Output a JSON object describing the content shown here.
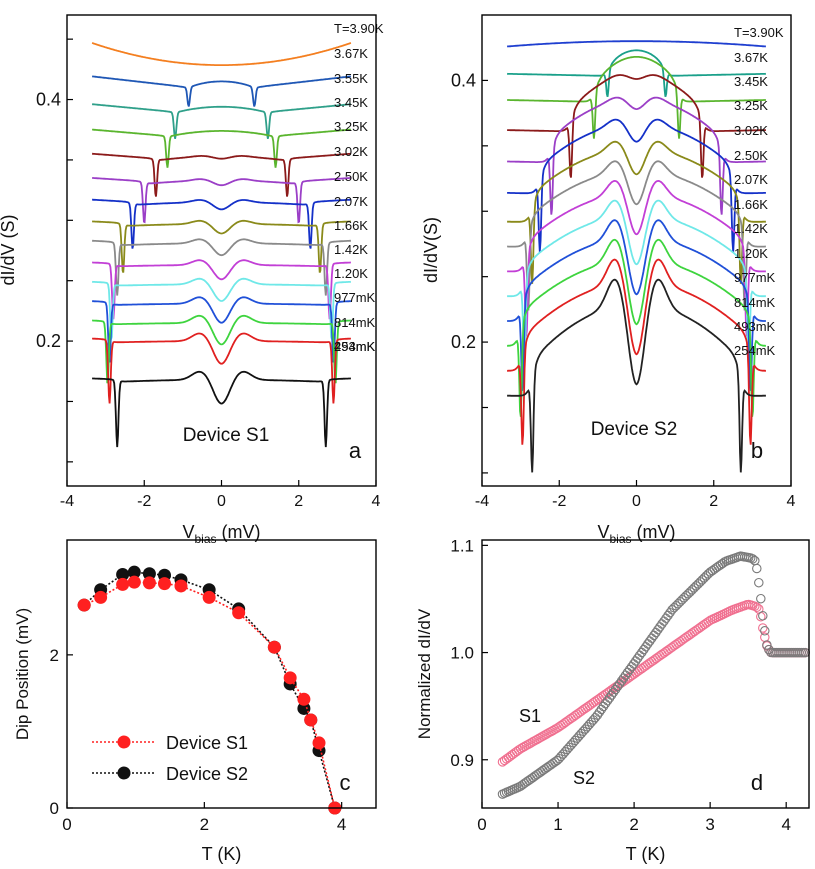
{
  "chart_data": [
    {
      "type": "line",
      "panel": "a",
      "device_label": "Device S1",
      "xlabel": "V",
      "xlabel_sub": "bias",
      "xlabel_unit": " (mV)",
      "ylabel": "dI/dV (S)",
      "xlim": [
        -4,
        4
      ],
      "ylim": [
        0.08,
        0.47
      ],
      "xticks": [
        "-4",
        "-2",
        "0",
        "2",
        "4"
      ],
      "yticks": [
        "0.2",
        "0.4"
      ],
      "series": [
        {
          "name": "T=3.90K",
          "color": "#f47f20",
          "offset": 0.4285,
          "dip": 0,
          "gap": 0,
          "dome": 0,
          "zb": 0,
          "bg": 0.018
        },
        {
          "name": "3.67K",
          "color": "#1f57b5",
          "offset": 0.407,
          "dip": 0.85,
          "gap": 0.016,
          "dome": 0.008,
          "zb": 0,
          "bg": 0.012
        },
        {
          "name": "3.55K",
          "color": "#2fa08a",
          "offset": 0.386,
          "dip": 1.2,
          "gap": 0.022,
          "dome": 0.008,
          "zb": 0,
          "bg": 0.01
        },
        {
          "name": "3.45K",
          "color": "#5ab52e",
          "offset": 0.366,
          "dip": 1.4,
          "gap": 0.026,
          "dome": 0.008,
          "zb": 0,
          "bg": 0.009
        },
        {
          "name": "3.25K",
          "color": "#8b1a1a",
          "offset": 0.347,
          "dip": 1.7,
          "gap": 0.031,
          "dome": 0.006,
          "zb": 0.002,
          "bg": 0.008
        },
        {
          "name": "3.02K",
          "color": "#9b3fc7",
          "offset": 0.328,
          "dip": 2.0,
          "gap": 0.034,
          "dome": 0.005,
          "zb": 0.004,
          "bg": 0.007
        },
        {
          "name": "2.50K",
          "color": "#1430c8",
          "offset": 0.311,
          "dip": 2.3,
          "gap": 0.038,
          "dome": 0.004,
          "zb": 0.006,
          "bg": 0.006
        },
        {
          "name": "2.07K",
          "color": "#8a8a1a",
          "offset": 0.294,
          "dip": 2.55,
          "gap": 0.041,
          "dome": 0.003,
          "zb": 0.008,
          "bg": 0.005
        },
        {
          "name": "1.66K",
          "color": "#8a8a8a",
          "offset": 0.278,
          "dip": 2.7,
          "gap": 0.043,
          "dome": 0.003,
          "zb": 0.01,
          "bg": 0.005
        },
        {
          "name": "1.42K",
          "color": "#c23fd6",
          "offset": 0.261,
          "dip": 2.8,
          "gap": 0.045,
          "dome": 0.002,
          "zb": 0.012,
          "bg": 0.004
        },
        {
          "name": "1.20K",
          "color": "#6fe8e8",
          "offset": 0.245,
          "dip": 2.85,
          "gap": 0.047,
          "dome": 0.002,
          "zb": 0.014,
          "bg": 0.004
        },
        {
          "name": "977mK",
          "color": "#2050d8",
          "offset": 0.229,
          "dip": 2.9,
          "gap": 0.049,
          "dome": 0.002,
          "zb": 0.016,
          "bg": 0.004
        },
        {
          "name": "814mK",
          "color": "#3ed43e",
          "offset": 0.213,
          "dip": 2.95,
          "gap": 0.051,
          "dome": 0.002,
          "zb": 0.018,
          "bg": 0.004
        },
        {
          "name": "493mK",
          "color": "#e02020",
          "offset": 0.198,
          "dip": 2.9,
          "gap": 0.052,
          "dome": 0.002,
          "zb": 0.019,
          "bg": 0.004
        },
        {
          "name": "254mK",
          "color": "#111111",
          "offset": 0.165,
          "dip": 2.7,
          "gap": 0.055,
          "dome": 0.003,
          "zb": 0.02,
          "bg": 0.004
        }
      ]
    },
    {
      "type": "line",
      "panel": "b",
      "device_label": "Device S2",
      "xlabel": "V",
      "xlabel_sub": "bias",
      "xlabel_unit": " (mV)",
      "ylabel": "dI/dV(S)",
      "xlim": [
        -4,
        4
      ],
      "ylim": [
        0.09,
        0.45
      ],
      "xticks": [
        "-4",
        "-2",
        "0",
        "2",
        "4"
      ],
      "yticks": [
        "0.2",
        "0.4"
      ],
      "series": [
        {
          "name": "T=3.90K",
          "color": "#1f3fd0",
          "offset": 0.43,
          "dip": 0,
          "gap": 0,
          "dome": 0,
          "zb": 0,
          "bg": -0.004
        },
        {
          "name": "3.67K",
          "color": "#1aa08a",
          "offset": 0.403,
          "dip": 0.75,
          "gap": 0.02,
          "dome": 0.02,
          "zb": 0,
          "bg": 0.002
        },
        {
          "name": "3.45K",
          "color": "#5ab52e",
          "offset": 0.383,
          "dip": 1.1,
          "gap": 0.035,
          "dome": 0.035,
          "zb": 0,
          "bg": 0.002
        },
        {
          "name": "3.25K",
          "color": "#8b1a1a",
          "offset": 0.36,
          "dip": 1.7,
          "gap": 0.045,
          "dome": 0.045,
          "zb": 0.004,
          "bg": 0.002
        },
        {
          "name": "3.02K",
          "color": "#9b3fc7",
          "offset": 0.336,
          "dip": 2.2,
          "gap": 0.05,
          "dome": 0.05,
          "zb": 0.008,
          "bg": 0.002
        },
        {
          "name": "2.50K",
          "color": "#1430c8",
          "offset": 0.312,
          "dip": 2.5,
          "gap": 0.055,
          "dome": 0.055,
          "zb": 0.014,
          "bg": 0.002
        },
        {
          "name": "2.07K",
          "color": "#8a8a1a",
          "offset": 0.29,
          "dip": 2.7,
          "gap": 0.058,
          "dome": 0.058,
          "zb": 0.02,
          "bg": 0.002
        },
        {
          "name": "1.66K",
          "color": "#8a8a8a",
          "offset": 0.271,
          "dip": 2.8,
          "gap": 0.06,
          "dome": 0.06,
          "zb": 0.026,
          "bg": 0.002
        },
        {
          "name": "1.42K",
          "color": "#c23fd6",
          "offset": 0.252,
          "dip": 2.85,
          "gap": 0.062,
          "dome": 0.062,
          "zb": 0.032,
          "bg": 0.002
        },
        {
          "name": "1.20K",
          "color": "#6fe8e8",
          "offset": 0.233,
          "dip": 2.9,
          "gap": 0.064,
          "dome": 0.064,
          "zb": 0.038,
          "bg": 0.002
        },
        {
          "name": "977mK",
          "color": "#2050d8",
          "offset": 0.214,
          "dip": 2.95,
          "gap": 0.066,
          "dome": 0.066,
          "zb": 0.044,
          "bg": 0.002
        },
        {
          "name": "814mK",
          "color": "#3ed43e",
          "offset": 0.195,
          "dip": 3.0,
          "gap": 0.068,
          "dome": 0.068,
          "zb": 0.05,
          "bg": 0.002
        },
        {
          "name": "493mK",
          "color": "#e02020",
          "offset": 0.176,
          "dip": 2.95,
          "gap": 0.07,
          "dome": 0.07,
          "zb": 0.056,
          "bg": 0.002
        },
        {
          "name": "254mK",
          "color": "#222222",
          "offset": 0.157,
          "dip": 2.7,
          "gap": 0.072,
          "dome": 0.072,
          "zb": 0.062,
          "bg": 0.002
        }
      ]
    },
    {
      "type": "line",
      "panel": "c",
      "xlabel": "T (K)",
      "ylabel": "Dip Position (mV)",
      "xlim": [
        0,
        4.5
      ],
      "ylim": [
        0,
        3.5
      ],
      "xticks": [
        "0",
        "2",
        "4"
      ],
      "yticks": [
        "0",
        "2"
      ],
      "series": [
        {
          "name": "Device S1",
          "color": "#ff2020",
          "marker_color": "#ff2020",
          "x": [
            0.25,
            0.49,
            0.81,
            0.98,
            1.2,
            1.42,
            1.66,
            2.07,
            2.5,
            3.02,
            3.25,
            3.45,
            3.55,
            3.67,
            3.9
          ],
          "y": [
            2.65,
            2.75,
            2.92,
            2.95,
            2.94,
            2.93,
            2.9,
            2.75,
            2.55,
            2.1,
            1.7,
            1.42,
            1.15,
            0.85,
            0.0
          ]
        },
        {
          "name": "Device S2",
          "color": "#111111",
          "marker_color": "#111111",
          "x": [
            0.25,
            0.49,
            0.81,
            0.98,
            1.2,
            1.42,
            1.66,
            2.07,
            2.5,
            3.02,
            3.25,
            3.45,
            3.55,
            3.67,
            3.9
          ],
          "y": [
            2.65,
            2.85,
            3.05,
            3.08,
            3.06,
            3.04,
            2.98,
            2.85,
            2.6,
            2.1,
            1.62,
            1.3,
            1.15,
            0.75,
            0.0
          ]
        }
      ]
    },
    {
      "type": "scatter",
      "panel": "d",
      "xlabel": "T (K)",
      "ylabel": "Normalized dI/dV",
      "xlim": [
        0,
        4.3
      ],
      "ylim": [
        0.855,
        1.105
      ],
      "xticks": [
        "0",
        "1",
        "2",
        "3",
        "4"
      ],
      "yticks": [
        "0.9",
        "1.0",
        "1.1"
      ],
      "series": [
        {
          "name": "S1",
          "color": "#f07090",
          "x": [
            0.27,
            0.5,
            1.0,
            1.5,
            2.0,
            2.5,
            3.0,
            3.3,
            3.5,
            3.6,
            3.65,
            3.7,
            3.75,
            3.8,
            4.0,
            4.25
          ],
          "y": [
            0.898,
            0.91,
            0.93,
            0.955,
            0.98,
            1.005,
            1.03,
            1.04,
            1.045,
            1.043,
            1.04,
            1.02,
            1.005,
            1.0,
            1.0,
            1.0
          ]
        },
        {
          "name": "S2",
          "color": "#7a7a7a",
          "x": [
            0.27,
            0.5,
            1.0,
            1.5,
            2.0,
            2.5,
            3.0,
            3.2,
            3.4,
            3.55,
            3.6,
            3.65,
            3.7,
            3.75,
            3.8,
            4.0,
            4.25
          ],
          "y": [
            0.868,
            0.875,
            0.9,
            0.94,
            0.99,
            1.04,
            1.075,
            1.085,
            1.09,
            1.088,
            1.085,
            1.06,
            1.03,
            1.005,
            1.0,
            1.0,
            1.0
          ]
        }
      ]
    }
  ]
}
